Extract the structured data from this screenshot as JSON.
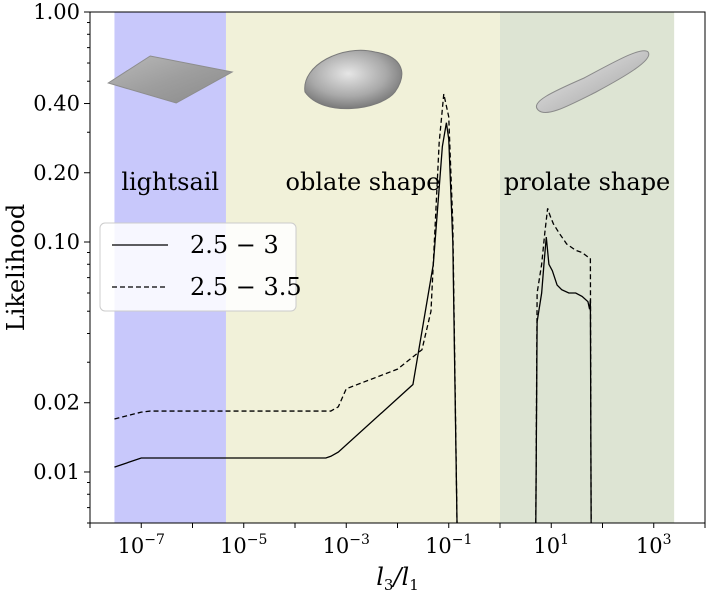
{
  "chart_data": {
    "type": "line",
    "xlabel": "l3/l1",
    "ylabel": "Likelihood",
    "xscale": "log",
    "yscale": "log",
    "xlim": [
      1e-08,
      10000.0
    ],
    "ylim": [
      0.006,
      1.0
    ],
    "y_ticks": [
      0.01,
      0.02,
      0.1,
      0.2,
      0.4,
      1.0
    ],
    "y_tick_labels": [
      "0.01",
      "0.02",
      "0.10",
      "0.20",
      "0.40",
      "1.00"
    ],
    "x_ticks": [
      {
        "base": "10",
        "exp": "−7",
        "value": 1e-07
      },
      {
        "base": "10",
        "exp": "−5",
        "value": 1e-05
      },
      {
        "base": "10",
        "exp": "−3",
        "value": 0.001
      },
      {
        "base": "10",
        "exp": "−1",
        "value": 0.1
      },
      {
        "base": "10",
        "exp": "1",
        "value": 10
      },
      {
        "base": "10",
        "exp": "3",
        "value": 1000
      }
    ],
    "regions": [
      {
        "label": "lightsail",
        "x0": 3e-08,
        "x1": 4.5e-06,
        "color": "#c8c8fb",
        "shape": "lightsail"
      },
      {
        "label": "oblate shape",
        "x0": 4.5e-06,
        "x1": 1.0,
        "color": "#f1f1d9",
        "shape": "oblate"
      },
      {
        "label": "prolate shape",
        "x0": 1.0,
        "x1": 2500,
        "color": "#dde4d3",
        "shape": "prolate"
      }
    ],
    "legend_position": "upper-left",
    "series": [
      {
        "name": "2.5 − 3",
        "style": "solid",
        "points": [
          [
            3e-08,
            0.0105
          ],
          [
            1e-07,
            0.0115
          ],
          [
            0.0004,
            0.0115
          ],
          [
            0.0005,
            0.0117
          ],
          [
            0.0007,
            0.0122
          ],
          [
            0.02,
            0.024
          ],
          [
            0.05,
            0.08
          ],
          [
            0.075,
            0.26
          ],
          [
            0.09,
            0.33
          ],
          [
            0.1,
            0.28
          ],
          [
            0.12,
            0.1
          ],
          [
            0.145,
            0.001
          ]
        ]
      },
      {
        "name": "2.5 − 3",
        "style": "solid",
        "points": [
          [
            5.0,
            0.001
          ],
          [
            5.3,
            0.045
          ],
          [
            6.5,
            0.06
          ],
          [
            7.2,
            0.08
          ],
          [
            8.0,
            0.105
          ],
          [
            9.0,
            0.08
          ],
          [
            10.5,
            0.075
          ],
          [
            13,
            0.065
          ],
          [
            16,
            0.062
          ],
          [
            22,
            0.06
          ],
          [
            30,
            0.06
          ],
          [
            40,
            0.058
          ],
          [
            52,
            0.055
          ],
          [
            56,
            0.051
          ],
          [
            58,
            0.056
          ],
          [
            60,
            0.001
          ]
        ]
      },
      {
        "name": "2.5 − 3.5",
        "style": "dashed",
        "points": [
          [
            3e-08,
            0.017
          ],
          [
            1e-07,
            0.0182
          ],
          [
            1.5e-07,
            0.0184
          ],
          [
            0.0005,
            0.0184
          ],
          [
            0.0007,
            0.0192
          ],
          [
            0.001,
            0.023
          ],
          [
            0.01,
            0.028
          ],
          [
            0.03,
            0.034
          ],
          [
            0.045,
            0.05
          ],
          [
            0.065,
            0.27
          ],
          [
            0.08,
            0.44
          ],
          [
            0.1,
            0.35
          ],
          [
            0.12,
            0.12
          ],
          [
            0.145,
            0.001
          ]
        ]
      },
      {
        "name": "2.5 − 3.5",
        "style": "dashed",
        "points": [
          [
            5.0,
            0.001
          ],
          [
            5.3,
            0.06
          ],
          [
            6.5,
            0.08
          ],
          [
            7.5,
            0.11
          ],
          [
            8.5,
            0.14
          ],
          [
            9.5,
            0.13
          ],
          [
            11,
            0.12
          ],
          [
            14,
            0.11
          ],
          [
            20,
            0.098
          ],
          [
            30,
            0.092
          ],
          [
            40,
            0.09
          ],
          [
            52,
            0.086
          ],
          [
            58,
            0.085
          ],
          [
            60,
            0.001
          ]
        ]
      }
    ],
    "legend": [
      {
        "label": "2.5 − 3",
        "style": "solid"
      },
      {
        "label": "2.5 − 3.5",
        "style": "dashed"
      }
    ]
  }
}
